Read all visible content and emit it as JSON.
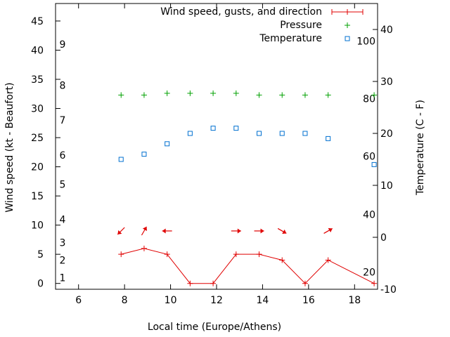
{
  "chart_data": {
    "type": "line",
    "xlabel": "Local time (Europe/Athens)",
    "ylabel_left": "Wind speed (kt - Beaufort)",
    "ylabel_right": "Temperature (C - F)",
    "xlim": [
      5,
      19
    ],
    "ylim_left": [
      -1,
      48
    ],
    "ylim_right": [
      -10,
      45
    ],
    "x_ticks": [
      6,
      8,
      10,
      12,
      14,
      16,
      18
    ],
    "y_left_ticks": [
      0,
      5,
      10,
      15,
      20,
      25,
      30,
      35,
      40,
      45
    ],
    "y_right_ticks": [
      -10,
      0,
      10,
      20,
      30,
      40
    ],
    "beaufort_labels": [
      {
        "label": "1",
        "at_kt": 1
      },
      {
        "label": "2",
        "at_kt": 4
      },
      {
        "label": "3",
        "at_kt": 7
      },
      {
        "label": "4",
        "at_kt": 11
      },
      {
        "label": "5",
        "at_kt": 17
      },
      {
        "label": "6",
        "at_kt": 22
      },
      {
        "label": "7",
        "at_kt": 28
      },
      {
        "label": "8",
        "at_kt": 34
      },
      {
        "label": "9",
        "at_kt": 41
      }
    ],
    "fahrenheit_labels": [
      {
        "label": "20",
        "at_c": -6.7
      },
      {
        "label": "40",
        "at_c": 4.4
      },
      {
        "label": "60",
        "at_c": 15.6
      },
      {
        "label": "80",
        "at_c": 26.7
      },
      {
        "label": "100",
        "at_c": 37.8
      }
    ],
    "legend": [
      "Wind speed, gusts, and direction",
      "Pressure",
      "Temperature"
    ],
    "legend_position": "top-right",
    "series": [
      {
        "name": "Wind speed, gusts, and direction",
        "color": "#e00000",
        "x": [
          7.85,
          8.85,
          9.85,
          10.85,
          11.85,
          12.85,
          13.85,
          14.85,
          15.85,
          16.85,
          18.85
        ],
        "y": [
          5,
          6,
          5,
          0,
          0,
          5,
          5,
          4,
          0,
          4,
          0
        ],
        "direction_arrow_deg": [
          225,
          60,
          180,
          null,
          null,
          0,
          0,
          330,
          null,
          30,
          null
        ]
      },
      {
        "name": "Pressure",
        "color": "#00a000",
        "axis": "left",
        "x": [
          7.85,
          8.85,
          9.85,
          10.85,
          11.85,
          12.85,
          13.85,
          14.85,
          15.85,
          16.85,
          18.85
        ],
        "y": [
          32.3,
          32.3,
          32.6,
          32.6,
          32.6,
          32.6,
          32.3,
          32.3,
          32.3,
          32.3,
          32.3
        ]
      },
      {
        "name": "Temperature",
        "color": "#0070d0",
        "axis": "right",
        "x": [
          7.85,
          8.85,
          9.85,
          10.85,
          11.85,
          12.85,
          13.85,
          14.85,
          15.85,
          16.85,
          18.85
        ],
        "y": [
          15,
          16,
          18,
          20,
          21,
          21,
          20,
          20,
          20,
          19,
          14
        ]
      }
    ]
  }
}
